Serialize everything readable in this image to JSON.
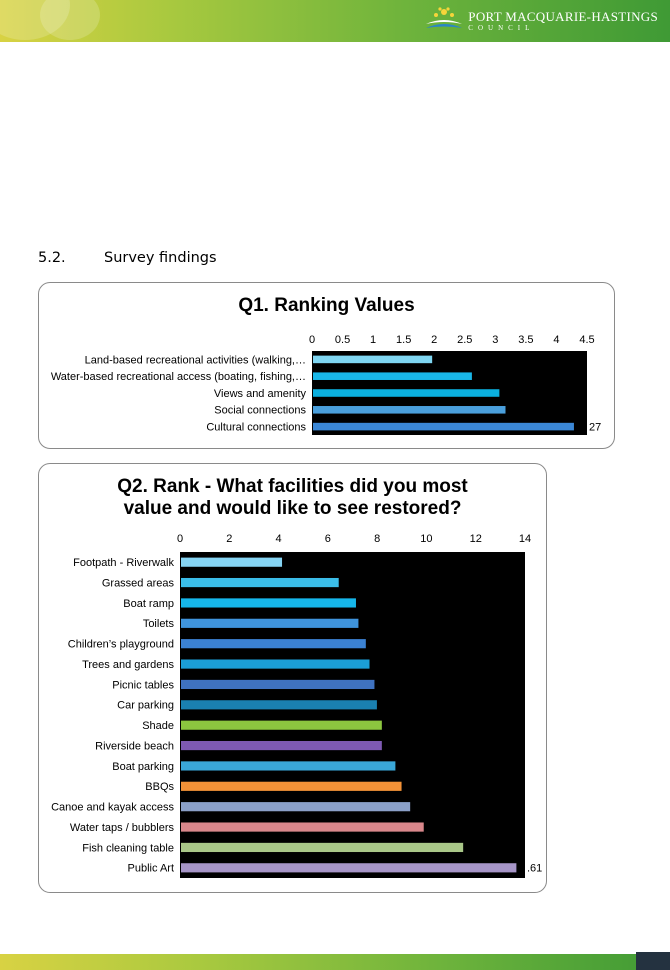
{
  "header": {
    "logo_title": "PORT MACQUARIE-HASTINGS",
    "logo_sub": "COUNCIL",
    "colors": {
      "bar_start": "#d8d243",
      "bar_end": "#3f9a35"
    }
  },
  "section": {
    "number": "5.2.",
    "title": "Survey findings"
  },
  "footer": {
    "page_number": ""
  },
  "chart_data": [
    {
      "type": "bar",
      "orientation": "horizontal",
      "title": "Q1. Ranking Values",
      "categories": [
        "Land-based recreational activities (walking,…",
        "Water-based recreational access (boating, fishing,…",
        "Views and amenity",
        "Social connections",
        "Cultural connections"
      ],
      "values": [
        1.95,
        2.6,
        3.05,
        3.15,
        4.27
      ],
      "bar_colors": [
        "#7fd6f2",
        "#19b7e8",
        "#0bb0e0",
        "#4a9fdc",
        "#3b87d6"
      ],
      "xlim": [
        0,
        4.5
      ],
      "xticks": [
        "0",
        "0.5",
        "1",
        "1.5",
        "2",
        "2.5",
        "3",
        "3.5",
        "4",
        "4.5"
      ],
      "visible_label": "27",
      "plot_background": "#000000",
      "grid": false
    },
    {
      "type": "bar",
      "orientation": "horizontal",
      "title_lines": [
        "Q2. Rank - What facilities did you most",
        "value and would like to see restored?"
      ],
      "categories": [
        "Footpath - Riverwalk",
        "Grassed areas",
        "Boat ramp",
        "Toilets",
        "Children’s playground",
        "Trees and gardens",
        "Picnic tables",
        "Car parking",
        "Shade",
        "Riverside beach",
        "Boat parking",
        "BBQs",
        "Canoe and kayak access",
        "Water taps / bubblers",
        "Fish cleaning table",
        "Public Art"
      ],
      "values": [
        4.1,
        6.4,
        7.1,
        7.2,
        7.5,
        7.65,
        7.85,
        7.95,
        8.15,
        8.15,
        8.7,
        8.95,
        9.3,
        9.85,
        11.45,
        13.61
      ],
      "bar_colors": [
        "#86d4f3",
        "#3bbde9",
        "#16b6ea",
        "#3f94dc",
        "#3b82d3",
        "#1b9ed6",
        "#3f72c0",
        "#1a80b0",
        "#8cc63f",
        "#7e5ab3",
        "#3aa7d8",
        "#f39237",
        "#8ba0c8",
        "#d9878b",
        "#a9c788",
        "#a695c7"
      ],
      "xlim": [
        0,
        14
      ],
      "xticks": [
        "0",
        "2",
        "4",
        "6",
        "8",
        "10",
        "12",
        "14"
      ],
      "visible_label": ".61",
      "plot_background": "#000000",
      "grid": false
    }
  ]
}
